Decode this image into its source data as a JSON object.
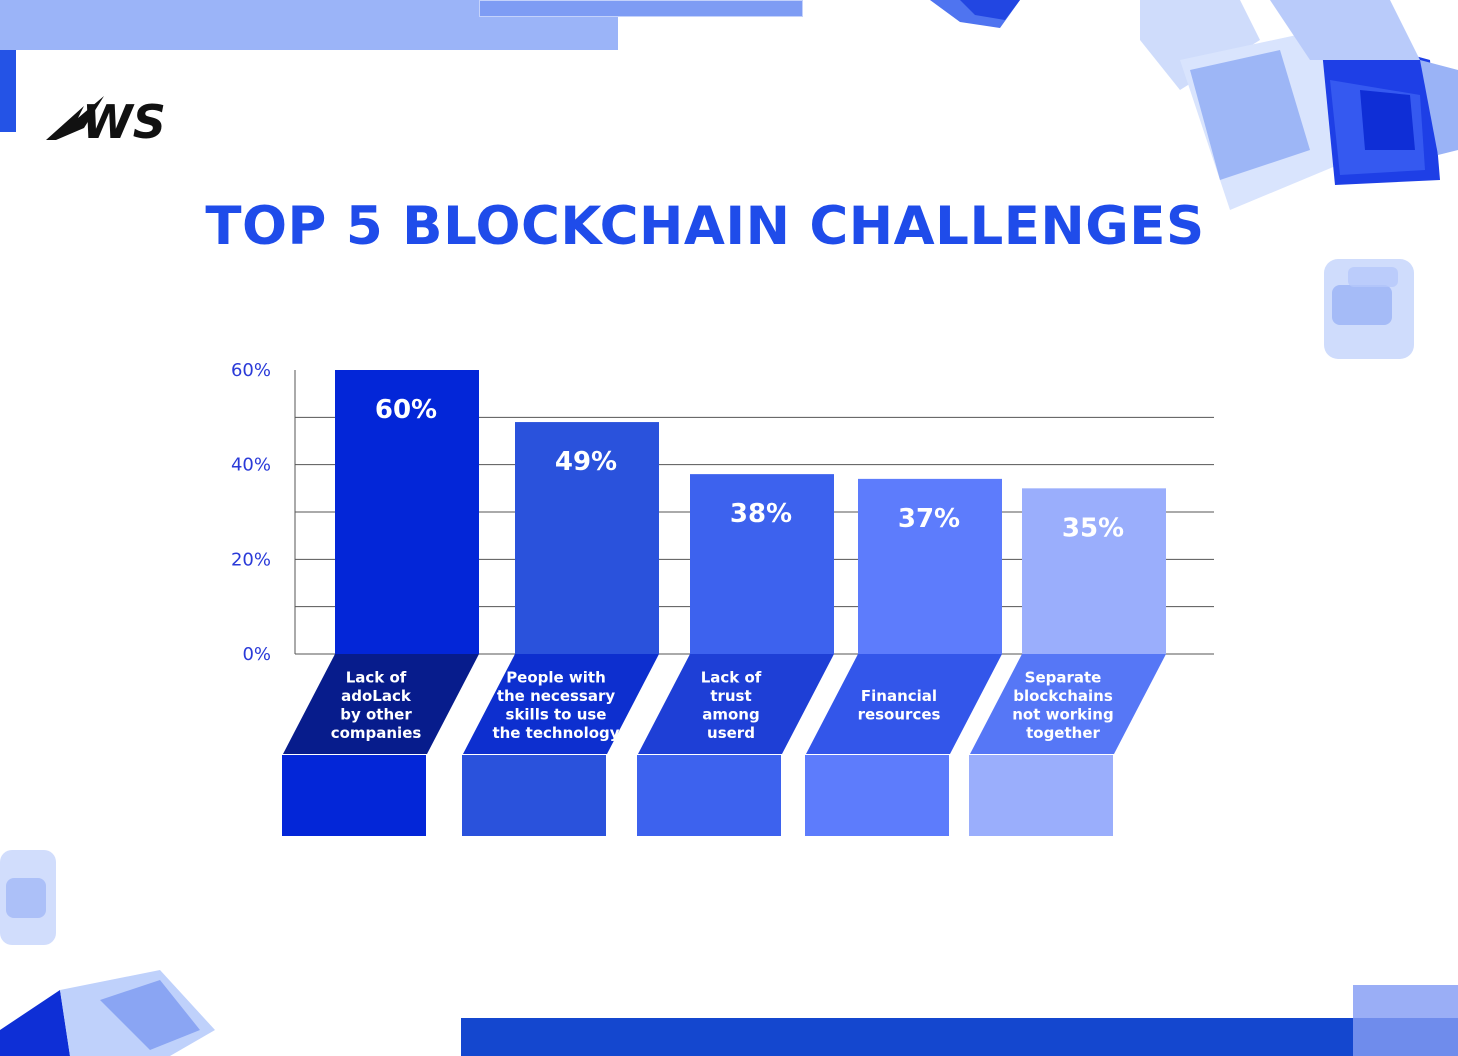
{
  "brand": {
    "logo_text": "WS"
  },
  "colors": {
    "title": "#1f4cea",
    "bar_1": "#0326d8",
    "bar_2": "#2a52dc",
    "bar_3": "#3d62ee",
    "bar_4": "#5d7cfc",
    "bar_5": "#9aaefc",
    "axis_tick": "#2a3ad8",
    "gridline": "#555555"
  },
  "chart_data": {
    "type": "bar",
    "title": "TOP 5 BLOCKCHAIN CHALLENGES",
    "categories": [
      "Lack of adoLack by other companies",
      "People with the necessary skills to use the technology",
      "Lack of trust among userd",
      "Financial resources",
      "Separate blockchains not working together"
    ],
    "category_label_lines": [
      [
        "Lack of",
        "adoLack",
        "by other",
        "companies"
      ],
      [
        "People with",
        "the necessary",
        "skills to use",
        "the technology"
      ],
      [
        "Lack of",
        "trust",
        "among",
        "userd"
      ],
      [
        "Financial",
        "resources"
      ],
      [
        "Separate",
        "blockchains",
        "not working",
        "together"
      ]
    ],
    "values": [
      60,
      49,
      38,
      37,
      35
    ],
    "data_labels": [
      "60%",
      "49%",
      "38%",
      "37%",
      "35%"
    ],
    "yticks": [
      "0%",
      "20%",
      "40%",
      "60%"
    ],
    "ytick_values": [
      0,
      20,
      40,
      60
    ],
    "ylim": [
      0,
      60
    ],
    "grid": true,
    "xlabel": "",
    "ylabel": ""
  }
}
